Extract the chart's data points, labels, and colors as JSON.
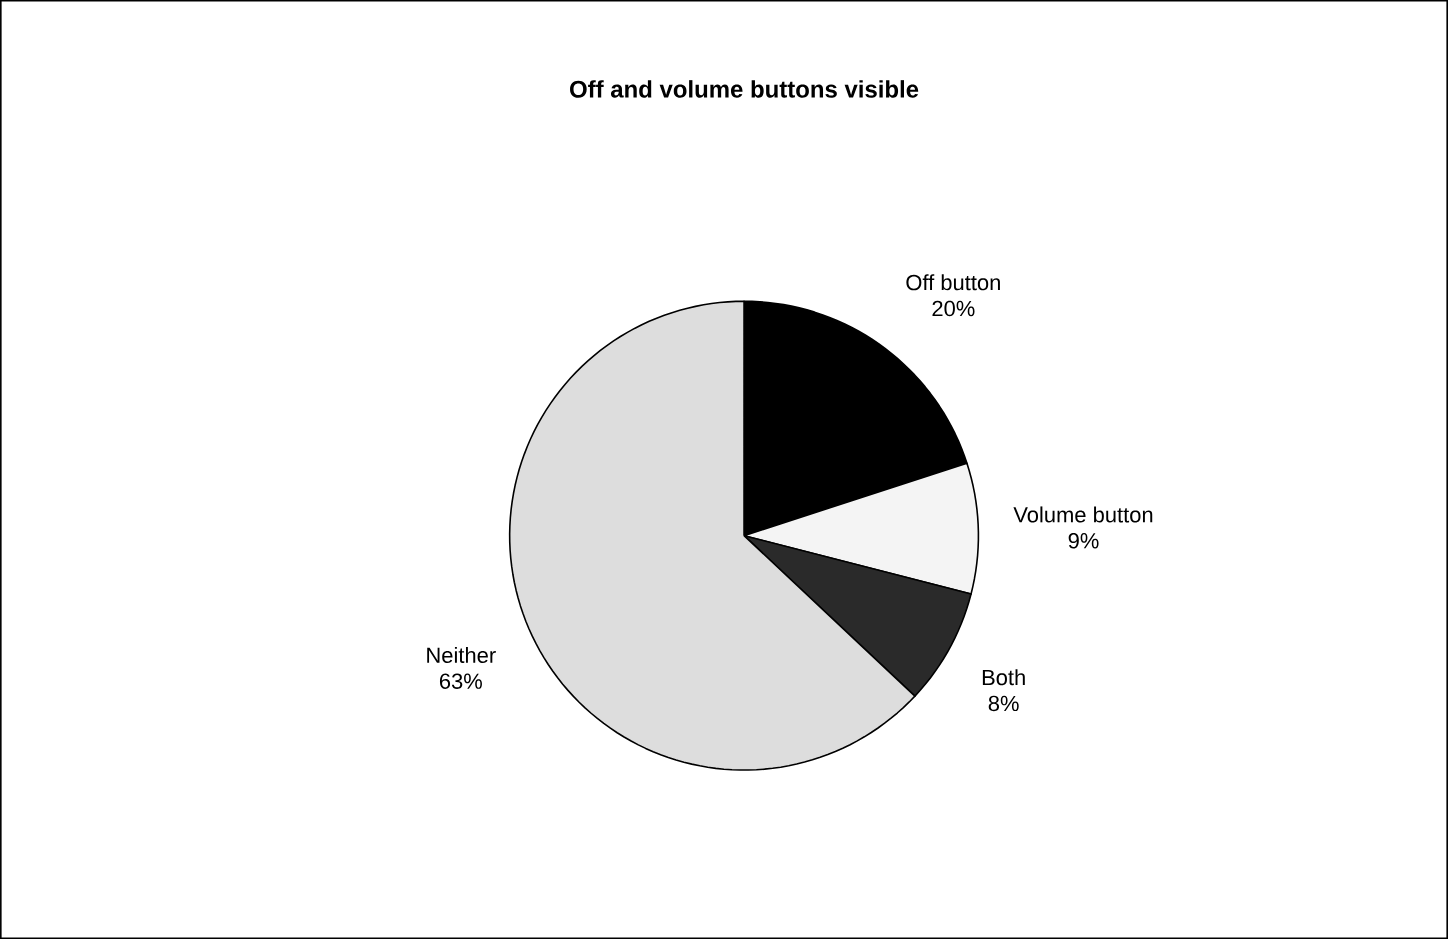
{
  "chart_data": {
    "type": "pie",
    "title": "Off and volume buttons visible",
    "categories": [
      "Off button",
      "Volume button",
      "Both",
      "Neither"
    ],
    "values": [
      20,
      9,
      8,
      63
    ],
    "value_labels": [
      "20%",
      "9%",
      "8%",
      "63%"
    ],
    "colors": [
      "#000000",
      "#f4f4f4",
      "#2a2a2a",
      "#dddddd"
    ]
  }
}
